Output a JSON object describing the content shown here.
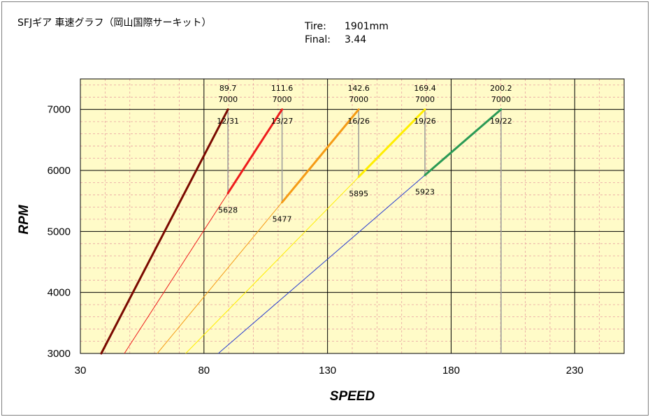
{
  "header": {
    "title": "SFJギア 車速グラフ（岡山国際サーキット）",
    "tire_label": "Tire:",
    "tire_value": "1901mm",
    "final_label": "Final:",
    "final_value": "3.44"
  },
  "chart_data": {
    "type": "line",
    "title": "SFJギア 車速グラフ（岡山国際サーキット）",
    "xlabel": "SPEED",
    "ylabel": "RPM",
    "xlim": [
      30,
      250
    ],
    "ylim": [
      3000,
      7500
    ],
    "xticks": [
      30,
      80,
      130,
      180,
      230
    ],
    "yticks": [
      3000,
      4000,
      5000,
      6000,
      7000
    ],
    "grid": true,
    "series": [
      {
        "name": "12/31",
        "color": "#7b0a00",
        "used": [
          [
            38.45,
            3000
          ],
          [
            89.7,
            7000
          ]
        ],
        "thin_to": [
          [
            38.45,
            3000
          ],
          [
            89.7,
            7000
          ]
        ]
      },
      {
        "name": "13/27",
        "color": "#ee1c1c",
        "used": [
          [
            89.7,
            5628
          ],
          [
            111.6,
            7000
          ]
        ],
        "thin_from": [
          47.8,
          3000
        ]
      },
      {
        "name": "16/26",
        "color": "#f59b15",
        "used": [
          [
            111.6,
            5477
          ],
          [
            142.6,
            7000
          ]
        ],
        "thin_from": [
          61.1,
          3000
        ]
      },
      {
        "name": "19/26",
        "color": "#ffee00",
        "used": [
          [
            142.6,
            5895
          ],
          [
            169.4,
            7000
          ]
        ],
        "thin_from": [
          72.6,
          3000
        ]
      },
      {
        "name": "19/22",
        "color": "#2a9a55",
        "used": [
          [
            169.4,
            5923
          ],
          [
            200.2,
            7000
          ]
        ],
        "thin_from": [
          85.8,
          3000
        ],
        "thin_color": "#2b3fd0"
      }
    ],
    "annotations": [
      {
        "speed": "89.7",
        "rpm_top": "7000",
        "gear": "12/31",
        "x": 89.7,
        "drop_rpm": 5628,
        "drop_label": "5628"
      },
      {
        "speed": "111.6",
        "rpm_top": "7000",
        "gear": "13/27",
        "x": 111.6,
        "drop_rpm": 5477,
        "drop_label": "5477"
      },
      {
        "speed": "142.6",
        "rpm_top": "7000",
        "gear": "16/26",
        "x": 142.6,
        "drop_rpm": 5895,
        "drop_label": "5895"
      },
      {
        "speed": "169.4",
        "rpm_top": "7000",
        "gear": "19/26",
        "x": 169.4,
        "drop_rpm": 5923,
        "drop_label": "5923"
      },
      {
        "speed": "200.2",
        "rpm_top": "7000",
        "gear": "19/22",
        "x": 200.2,
        "drop_rpm": 3000,
        "drop_label": ""
      }
    ],
    "colors": {
      "plot_bg": "#fffbc8",
      "grid_major": "#000000",
      "grid_minor": "#e8a0a0",
      "shift_line": "#9a9a9a"
    }
  }
}
